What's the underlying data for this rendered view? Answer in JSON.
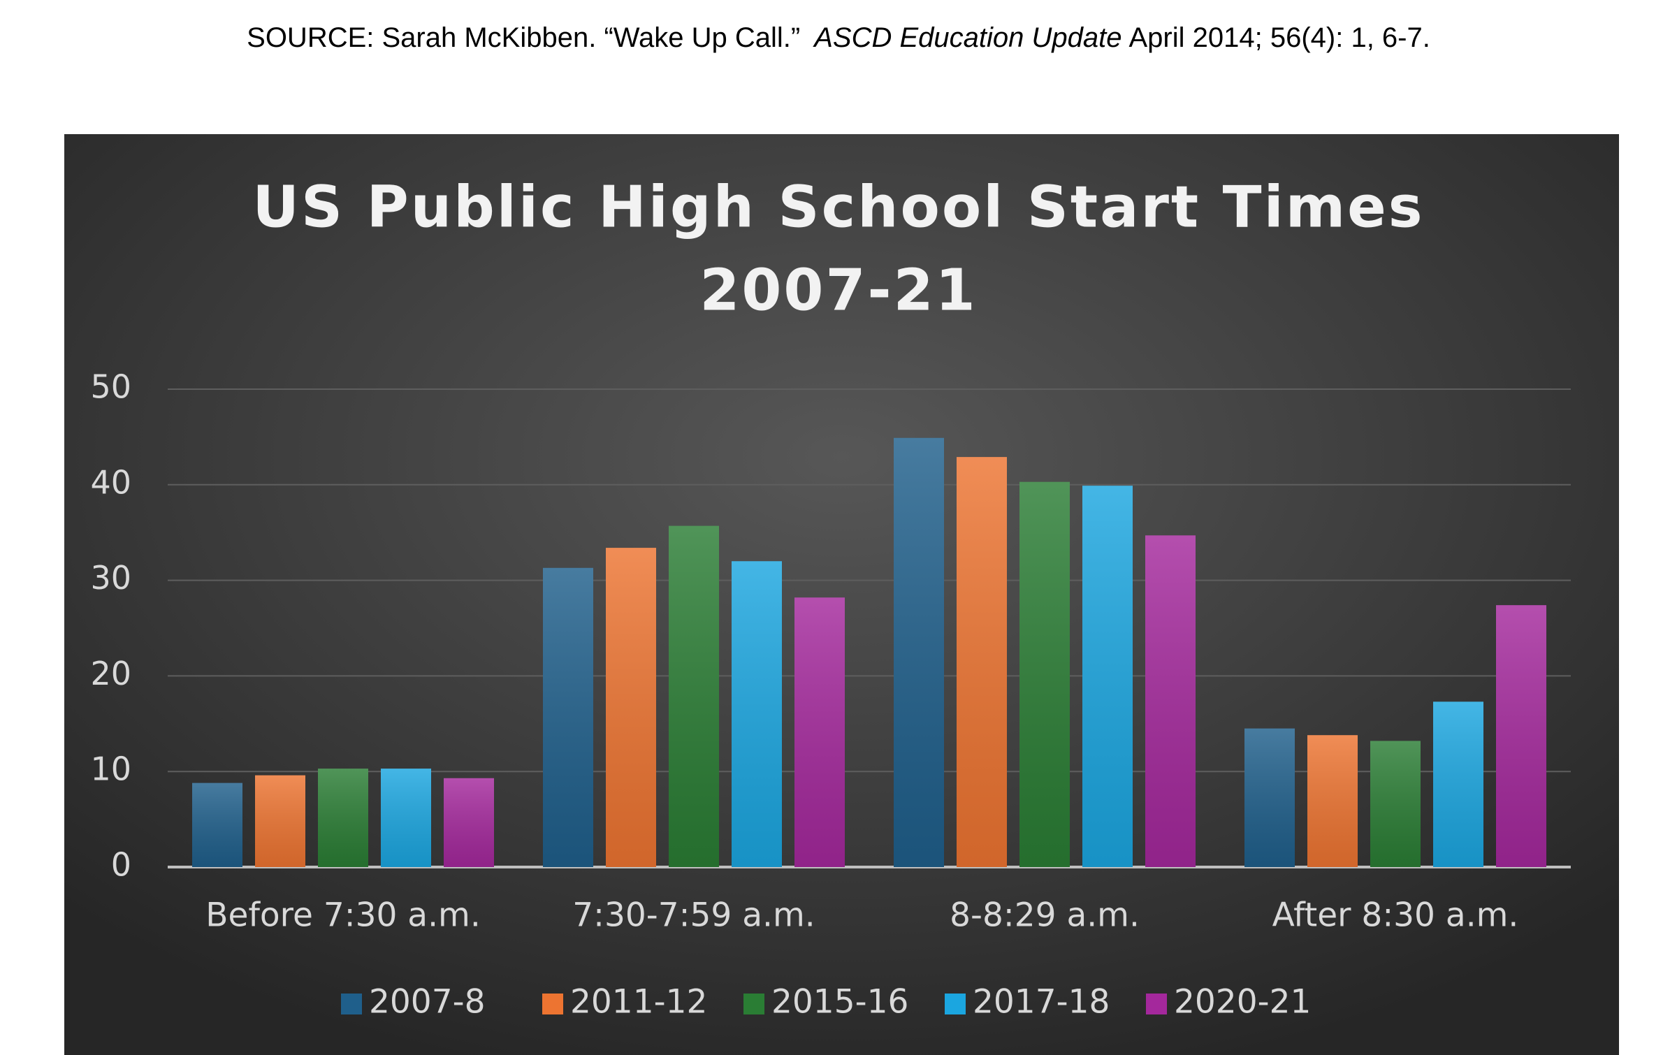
{
  "source": {
    "prefix": "SOURCE:  Sarah McKibben. “Wake Up Call.”",
    "journal": "ASCD Education Update",
    "suffix": "April 2014; 56(4): 1, 6-7."
  },
  "chart_data": {
    "type": "bar",
    "title": [
      "US Public High School Start Times",
      "2007-21"
    ],
    "categories": [
      "Before 7:30 a.m.",
      "7:30-7:59 a.m.",
      "8-8:29 a.m.",
      "After 8:30 a.m."
    ],
    "series": [
      {
        "name": "2007-8",
        "color": "#1f5f8b",
        "values": [
          8.8,
          31.3,
          44.9,
          14.5
        ]
      },
      {
        "name": "2011-12",
        "color": "#ed7431",
        "values": [
          9.6,
          33.4,
          42.9,
          13.8
        ]
      },
      {
        "name": "2015-16",
        "color": "#2a7d34",
        "values": [
          10.3,
          35.7,
          40.3,
          13.2
        ]
      },
      {
        "name": "2017-18",
        "color": "#1ba6e0",
        "values": [
          10.3,
          32.0,
          39.9,
          17.3
        ]
      },
      {
        "name": "2020-21",
        "color": "#a4289c",
        "values": [
          9.3,
          28.2,
          34.7,
          27.4
        ]
      }
    ],
    "ylim": [
      0,
      50
    ],
    "yticks": [
      0,
      10,
      20,
      30,
      40,
      50
    ],
    "grid": true,
    "legend": "bottom"
  }
}
